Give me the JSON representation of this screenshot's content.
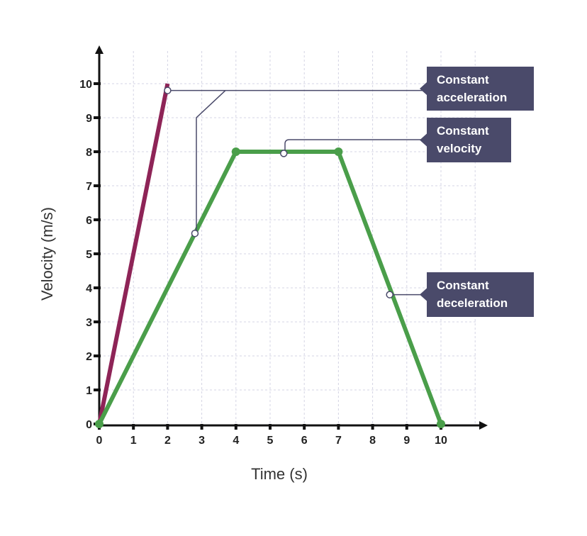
{
  "chart_data": {
    "type": "line",
    "xlabel": "Time (s)",
    "ylabel": "Velocity (m/s)",
    "xlim": [
      0,
      10
    ],
    "ylim": [
      0,
      10
    ],
    "x_ticks": [
      "0",
      "1",
      "2",
      "3",
      "4",
      "5",
      "6",
      "7",
      "8",
      "9",
      "10"
    ],
    "y_ticks": [
      "0",
      "1",
      "2",
      "3",
      "4",
      "5",
      "6",
      "7",
      "8",
      "9",
      "10"
    ],
    "grid": true,
    "series": [
      {
        "color": "#8e2457",
        "points": [
          [
            0,
            0
          ],
          [
            2,
            10
          ]
        ],
        "markers": false
      },
      {
        "color": "#4a9e4a",
        "points": [
          [
            0,
            0
          ],
          [
            4,
            8
          ],
          [
            7,
            8
          ],
          [
            10,
            0
          ]
        ],
        "markers": true
      }
    ],
    "annotations": [
      {
        "lines": [
          "Constant",
          "acceleration"
        ],
        "targets": [
          [
            2,
            9.8
          ],
          [
            2.8,
            5.6
          ]
        ]
      },
      {
        "lines": [
          "Constant",
          "velocity"
        ],
        "targets": [
          [
            5.4,
            7.95
          ]
        ]
      },
      {
        "lines": [
          "Constant",
          "deceleration"
        ],
        "targets": [
          [
            8.5,
            3.8
          ]
        ]
      }
    ],
    "annotation_color": "#4a4a6a"
  }
}
